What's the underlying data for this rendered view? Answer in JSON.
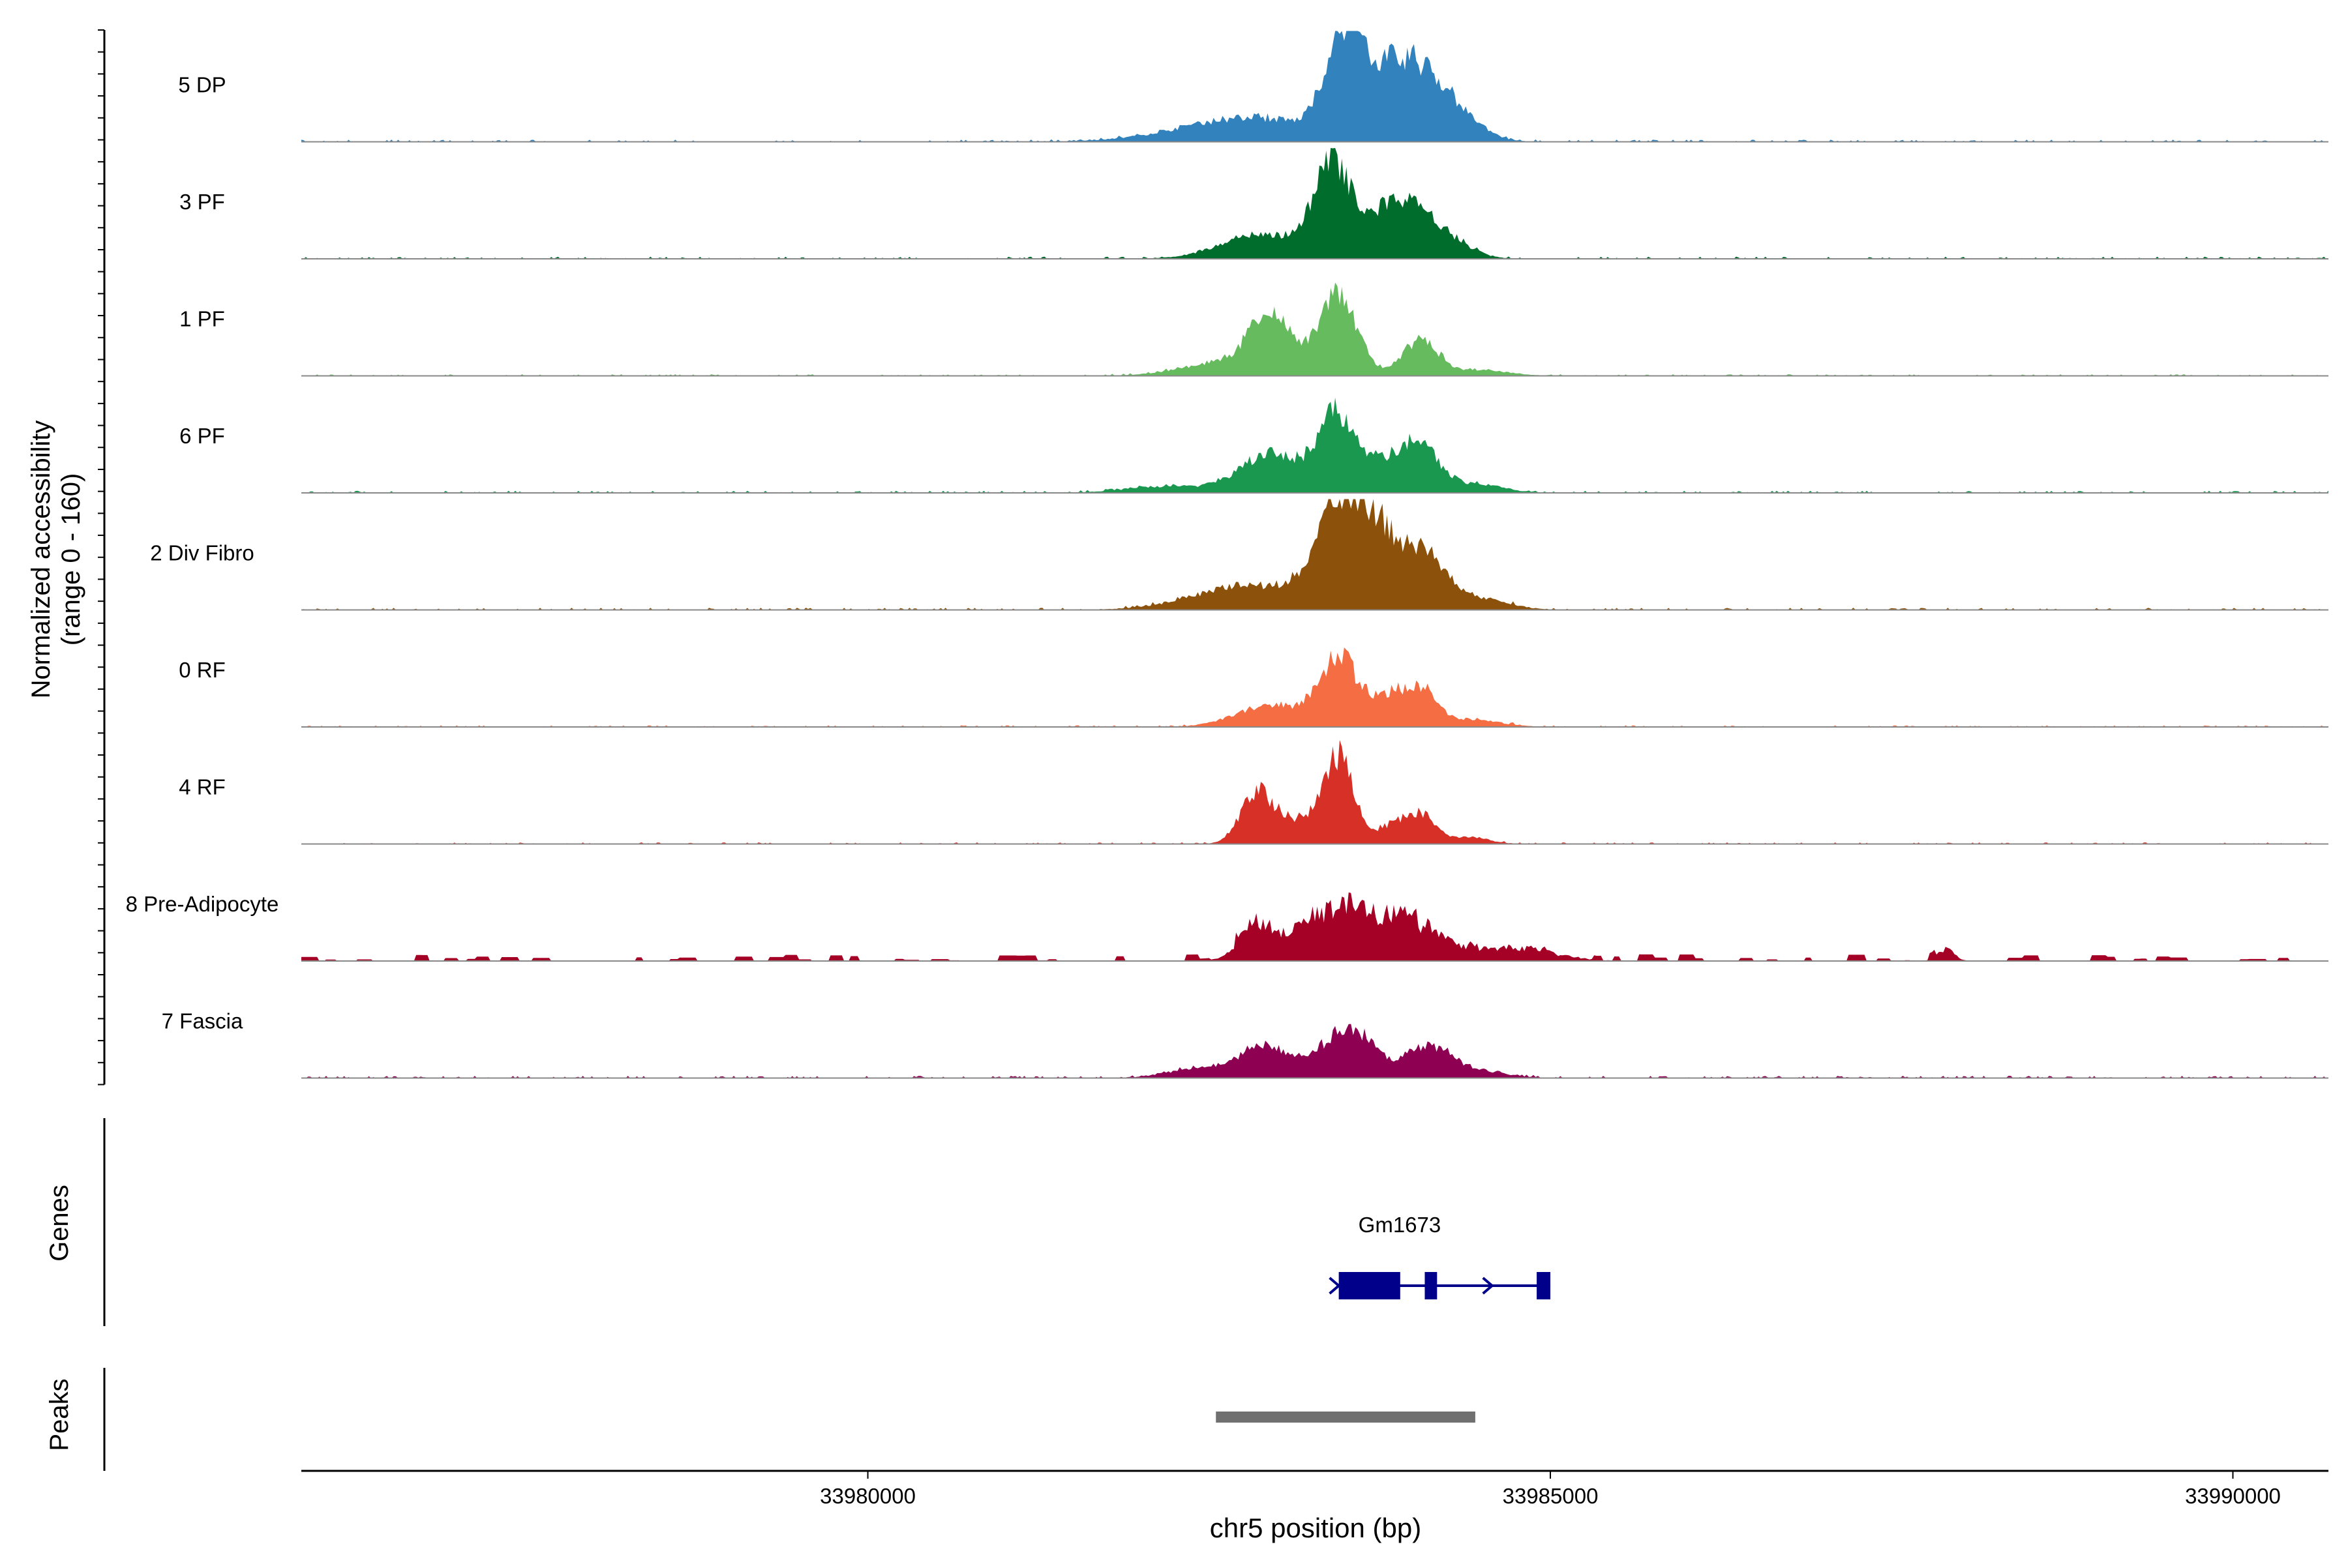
{
  "chart_data": {
    "type": "area",
    "ylabel": "Normalized accessibility",
    "ylabel_range": "(range 0 - 160)",
    "xlabel": "chr5 position (bp)",
    "xlim": [
      33975850,
      33990700
    ],
    "ylim": [
      0,
      160
    ],
    "x_ticks": [
      33980000,
      33985000,
      33990000
    ],
    "x_tick_labels": [
      "33980000",
      "33985000",
      "33990000"
    ],
    "grid": false,
    "legend": "none",
    "tracks_label": "Genes",
    "peaks_label": "Peaks",
    "series": [
      {
        "name": "5 DP",
        "color": "#3182BD",
        "peaks": [
          [
            33982800,
            0.22,
            500
          ],
          [
            33983480,
            0.85,
            130
          ],
          [
            33983760,
            0.35,
            180
          ],
          [
            33984020,
            0.55,
            220
          ],
          [
            33984300,
            0.15,
            200
          ]
        ],
        "baseline": 0.02
      },
      {
        "name": "3 PF",
        "color": "#006D2C",
        "peaks": [
          [
            33982900,
            0.22,
            300
          ],
          [
            33983400,
            0.8,
            130
          ],
          [
            33983750,
            0.3,
            180
          ],
          [
            33984000,
            0.4,
            180
          ],
          [
            33984300,
            0.1,
            160
          ]
        ],
        "baseline": 0.02
      },
      {
        "name": "1 PF",
        "color": "#66BB5F",
        "peaks": [
          [
            33982600,
            0.12,
            300
          ],
          [
            33982950,
            0.52,
            150
          ],
          [
            33983440,
            0.72,
            140
          ],
          [
            33984050,
            0.32,
            130
          ],
          [
            33984500,
            0.05,
            200
          ]
        ],
        "baseline": 0.015
      },
      {
        "name": "6 PF",
        "color": "#1B9850",
        "peaks": [
          [
            33982200,
            0.06,
            300
          ],
          [
            33982950,
            0.35,
            220
          ],
          [
            33983430,
            0.65,
            140
          ],
          [
            33983800,
            0.25,
            200
          ],
          [
            33984050,
            0.33,
            140
          ],
          [
            33984450,
            0.08,
            200
          ]
        ],
        "baseline": 0.02
      },
      {
        "name": "2 Div Fibro",
        "color": "#8C510A",
        "peaks": [
          [
            33982800,
            0.22,
            400
          ],
          [
            33983450,
            0.85,
            170
          ],
          [
            33983750,
            0.62,
            170
          ],
          [
            33984100,
            0.45,
            150
          ],
          [
            33984500,
            0.1,
            200
          ]
        ],
        "baseline": 0.02
      },
      {
        "name": "0 RF",
        "color": "#F46D43",
        "peaks": [
          [
            33982950,
            0.2,
            250
          ],
          [
            33983450,
            0.62,
            140
          ],
          [
            33983800,
            0.25,
            120
          ],
          [
            33984050,
            0.33,
            120
          ],
          [
            33984450,
            0.06,
            200
          ]
        ],
        "baseline": 0.015
      },
      {
        "name": "4 RF",
        "color": "#D73027",
        "peaks": [
          [
            33982850,
            0.45,
            120
          ],
          [
            33983150,
            0.2,
            150
          ],
          [
            33983450,
            0.78,
            110
          ],
          [
            33983830,
            0.15,
            110
          ],
          [
            33984050,
            0.26,
            110
          ],
          [
            33984400,
            0.06,
            150
          ]
        ],
        "baseline": 0.015
      },
      {
        "name": "8 Pre-Adipocyte",
        "color": "#A50026",
        "peaks": [
          [
            33982850,
            0.32,
            130
          ],
          [
            33983300,
            0.28,
            200
          ],
          [
            33983650,
            0.36,
            250
          ],
          [
            33984050,
            0.22,
            200
          ],
          [
            33984700,
            0.12,
            300
          ],
          [
            33987900,
            0.1,
            60
          ]
        ],
        "baseline": 0.06,
        "blocky": true
      },
      {
        "name": "7 Fascia",
        "color": "#8E0152",
        "peaks": [
          [
            33982500,
            0.1,
            250
          ],
          [
            33982900,
            0.28,
            150
          ],
          [
            33983250,
            0.15,
            150
          ],
          [
            33983550,
            0.42,
            160
          ],
          [
            33984100,
            0.28,
            180
          ],
          [
            33984500,
            0.05,
            200
          ]
        ],
        "baseline": 0.02
      }
    ],
    "gene": {
      "name": "Gm1673",
      "color": "#00008B",
      "strand": "+",
      "start": 33983450,
      "end": 33985000,
      "exons": [
        [
          33983450,
          33983900
        ],
        [
          33984080,
          33984170
        ],
        [
          33984900,
          33985000
        ]
      ]
    },
    "peak_regions": [
      {
        "start": 33982550,
        "end": 33984450,
        "color": "#707070"
      }
    ]
  }
}
